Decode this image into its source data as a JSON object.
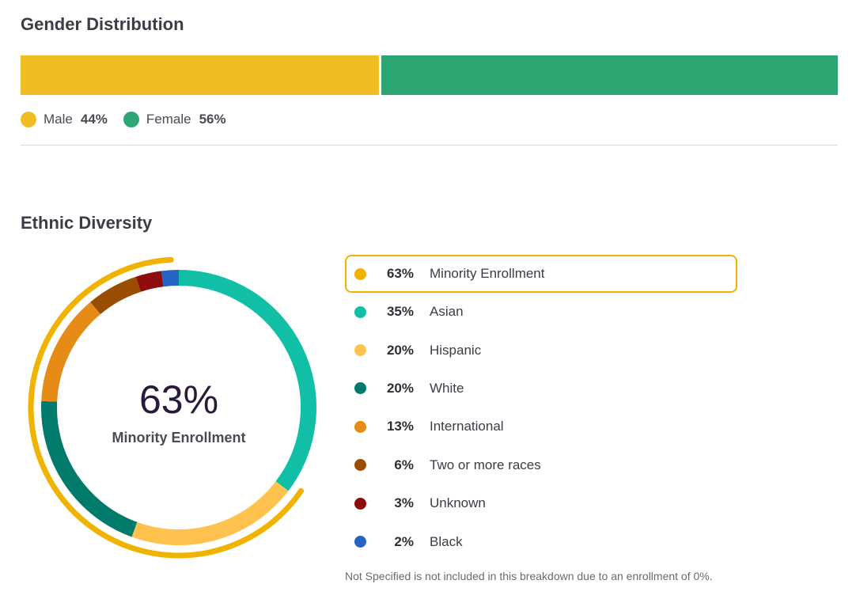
{
  "gender": {
    "title": "Gender Distribution",
    "items": [
      {
        "label": "Male",
        "pct_text": "44%",
        "value": 44,
        "color": "#f0be24"
      },
      {
        "label": "Female",
        "pct_text": "56%",
        "value": 56,
        "color": "#2ea673"
      }
    ]
  },
  "ethnic": {
    "title": "Ethnic Diversity",
    "center_value": "63%",
    "center_label": "Minority Enrollment",
    "footnote": "Not Specified is not included in this breakdown due to an enrollment of 0%.",
    "minority": {
      "pct_text": "63%",
      "label": "Minority Enrollment",
      "value": 63,
      "color": "#f0b400"
    },
    "items": [
      {
        "pct_text": "35%",
        "label": "Asian",
        "value": 35,
        "color": "#10bfa6"
      },
      {
        "pct_text": "20%",
        "label": "Hispanic",
        "value": 20,
        "color": "#ffc24f"
      },
      {
        "pct_text": "20%",
        "label": "White",
        "value": 20,
        "color": "#007a6a"
      },
      {
        "pct_text": "13%",
        "label": "International",
        "value": 13,
        "color": "#e68c16"
      },
      {
        "pct_text": "6%",
        "label": "Two or more races",
        "value": 6,
        "color": "#9a4d00"
      },
      {
        "pct_text": "3%",
        "label": "Unknown",
        "value": 3,
        "color": "#8f0c0c"
      },
      {
        "pct_text": "2%",
        "label": "Black",
        "value": 2,
        "color": "#2563c4"
      }
    ]
  },
  "chart_data": [
    {
      "type": "bar",
      "title": "Gender Distribution",
      "categories": [
        "Male",
        "Female"
      ],
      "values": [
        44,
        56
      ],
      "unit": "%"
    },
    {
      "type": "pie",
      "title": "Ethnic Diversity",
      "categories": [
        "Asian",
        "Hispanic",
        "White",
        "International",
        "Two or more races",
        "Unknown",
        "Black"
      ],
      "values": [
        35,
        20,
        20,
        13,
        6,
        3,
        2
      ],
      "highlight": {
        "label": "Minority Enrollment",
        "value": 63
      },
      "unit": "%"
    }
  ]
}
